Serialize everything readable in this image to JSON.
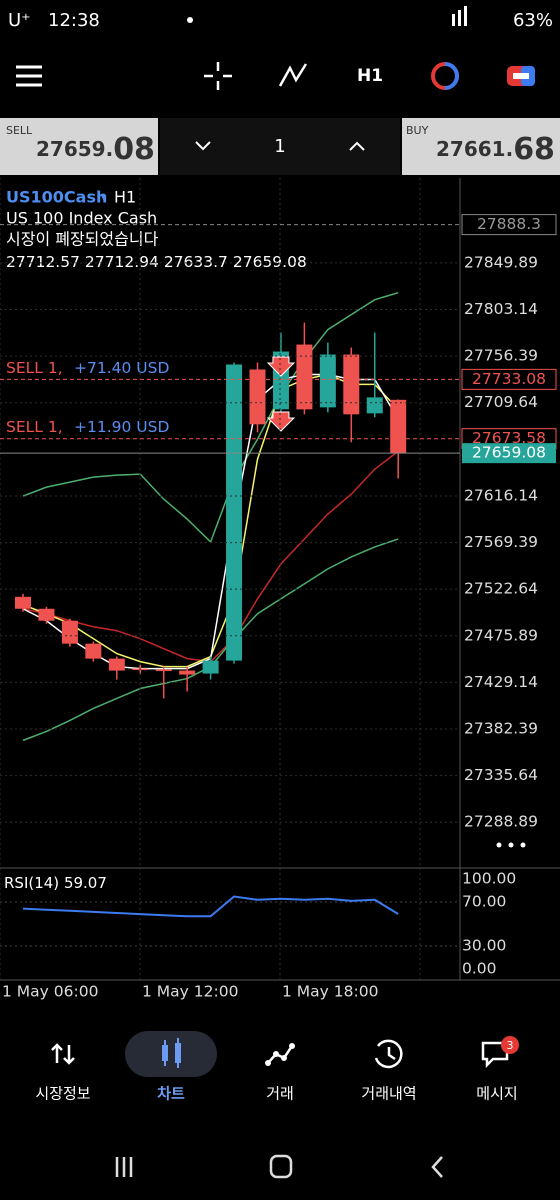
{
  "status_bar": {
    "carrier": "U⁺",
    "time": "12:38",
    "battery": "63%"
  },
  "toolbar": {
    "timeframe": "H1"
  },
  "quote": {
    "sell_label": "SELL",
    "sell_price": "27659.",
    "sell_price_big": "08",
    "volume": "1",
    "buy_label": "BUY",
    "buy_price": "27661.",
    "buy_price_big": "68"
  },
  "chart_data": {
    "type": "candlestick",
    "symbol": "US100Cash",
    "timeframe": "H1",
    "description": "US 100 Index Cash",
    "notice": "시장이 폐장되었습니다",
    "up_color": "#26a69a",
    "down_color": "#ef5350",
    "candles": [
      {
        "open": 27515,
        "high": 27518,
        "low": 27500,
        "close": 27503
      },
      {
        "open": 27503,
        "high": 27505,
        "low": 27488,
        "close": 27491
      },
      {
        "open": 27491,
        "high": 27493,
        "low": 27465,
        "close": 27468
      },
      {
        "open": 27468,
        "high": 27470,
        "low": 27450,
        "close": 27453
      },
      {
        "open": 27453,
        "high": 27455,
        "low": 27432,
        "close": 27441
      },
      {
        "open": 27443,
        "high": 27447,
        "low": 27437,
        "close": 27442
      },
      {
        "open": 27442,
        "high": 27445,
        "low": 27413,
        "close": 27441
      },
      {
        "open": 27441,
        "high": 27445,
        "low": 27420,
        "close": 27437
      },
      {
        "open": 27438,
        "high": 27455,
        "low": 27432,
        "close": 27451
      },
      {
        "open": 27451,
        "high": 27750,
        "low": 27448,
        "close": 27748
      },
      {
        "open": 27743,
        "high": 27750,
        "low": 27680,
        "close": 27688
      },
      {
        "open": 27703,
        "high": 27780,
        "low": 27690,
        "close": 27761
      },
      {
        "open": 27768,
        "high": 27790,
        "low": 27698,
        "close": 27703
      },
      {
        "open": 27705,
        "high": 27770,
        "low": 27700,
        "close": 27758
      },
      {
        "open": 27758,
        "high": 27765,
        "low": 27670,
        "close": 27698
      },
      {
        "open": 27699,
        "high": 27780,
        "low": 27695,
        "close": 27715
      },
      {
        "open": 27712.57,
        "high": 27712.94,
        "low": 27633.7,
        "close": 27659.08
      }
    ],
    "ylim": [
      27246,
      27918
    ],
    "yticks": [
      27849.89,
      27803.14,
      27756.39,
      27709.64,
      27616.14,
      27569.39,
      27522.64,
      27475.89,
      27429.14,
      27382.39,
      27335.64,
      27288.89
    ],
    "grid": true,
    "indicators": [
      {
        "color": "#4caf6e",
        "values": [
          27616,
          27625,
          27630,
          27635,
          27637,
          27638,
          27613,
          27593,
          27570,
          27633,
          27673,
          27718,
          27753,
          27783,
          27798,
          27813,
          27820
        ]
      },
      {
        "color": "#c62828",
        "values": [
          27503,
          27498,
          27491,
          27485,
          27481,
          27473,
          27463,
          27453,
          27450,
          27473,
          27513,
          27548,
          27573,
          27598,
          27618,
          27643,
          27661
        ]
      },
      {
        "color": "#4caf6e",
        "values": [
          27371,
          27380,
          27391,
          27403,
          27413,
          27423,
          27428,
          27433,
          27445,
          27473,
          27498,
          27513,
          27528,
          27543,
          27555,
          27565,
          27573
        ]
      },
      {
        "color": "#f5f56a",
        "values": [
          27507,
          27498,
          27488,
          27473,
          27458,
          27450,
          27445,
          27445,
          27455,
          27513,
          27653,
          27723,
          27733,
          27738,
          27728,
          27728,
          27703
        ]
      },
      {
        "color": "#ffffff",
        "values": [
          27503,
          27491,
          27473,
          27458,
          27445,
          27443,
          27443,
          27443,
          27453,
          27593,
          27713,
          27733,
          27738,
          27738,
          27733,
          27733,
          27693
        ]
      }
    ],
    "ask_line": 27888.3,
    "price_lines": [
      {
        "label": "SELL 1,",
        "profit": "+71.40 USD",
        "price": 27733.08
      },
      {
        "label": "SELL 1,",
        "profit": "+11.90 USD",
        "price": 27673.58
      }
    ],
    "time_labels": [
      "1 May 06:00",
      "1 May 12:00",
      "1 May 18:00"
    ],
    "rsi": {
      "label": "RSI(14)",
      "color": "#3d7bf0",
      "values": [
        64,
        63,
        62,
        61,
        60,
        59,
        58,
        57,
        57,
        75,
        72,
        73,
        72,
        73,
        71,
        72,
        59.07
      ],
      "ylim": [
        0,
        100
      ],
      "yticks": [
        {
          "value": 100,
          "label": "100.00"
        },
        {
          "value": 70,
          "label": "70.00"
        },
        {
          "value": 30,
          "label": "30.00"
        },
        {
          "value": 0,
          "label": "0.00"
        }
      ]
    }
  },
  "nav": {
    "items": [
      "시장정보",
      "차트",
      "거래",
      "거래내역",
      "메시지"
    ],
    "badge": "3"
  }
}
